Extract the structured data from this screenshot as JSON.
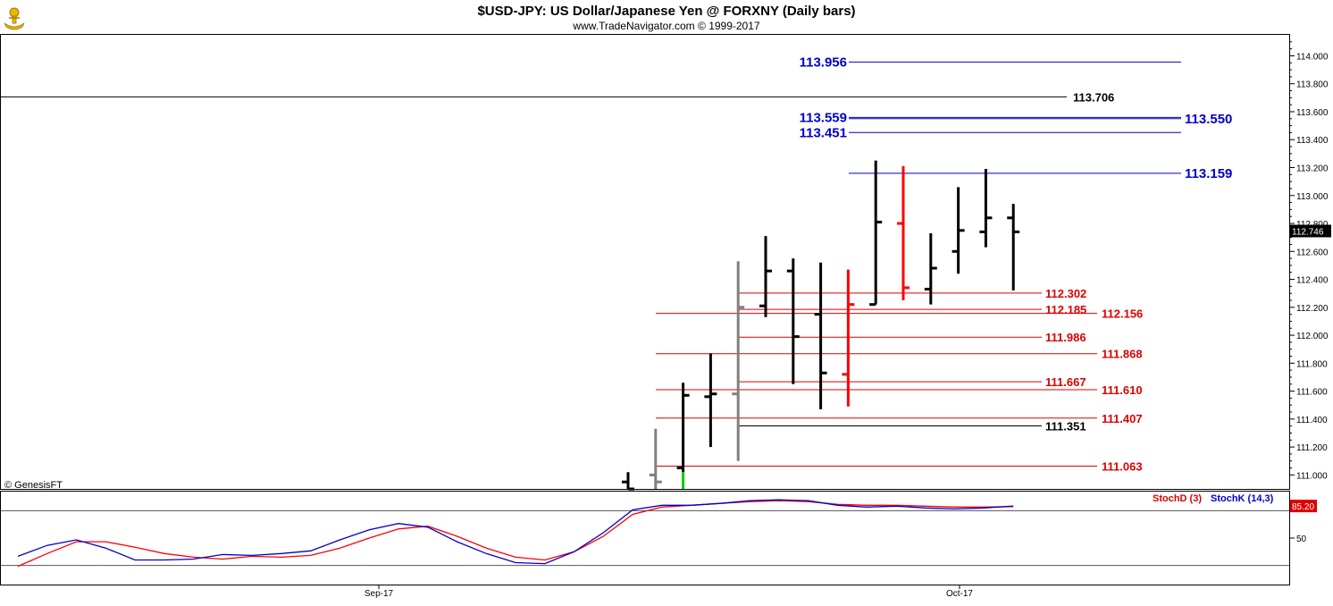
{
  "header": {
    "title": "$USD-JPY:  US Dollar/Japanese Yen @ FORXNY  (Daily bars)",
    "subtitle": "www.TradeNavigator.com © 1999-2017",
    "watermark": "© GenesisFT",
    "logo_icon": "ship-wheel-logo-icon"
  },
  "colors": {
    "background": "#ffffff",
    "up_bar": "#000000",
    "down_bar": "#ff0000",
    "neutral_bar": "#808080",
    "green_bar": "#00cc00",
    "blue_level": "#0000cc",
    "red_level": "#dd0000",
    "black_level": "#000000",
    "stoch_d": "#dd0000",
    "stoch_k": "#0000cc",
    "last_price_badge": "#000000",
    "stoch_badge": "#dd0000"
  },
  "chart_data": [
    {
      "type": "ohlc",
      "title": "$USD-JPY:  US Dollar/Japanese Yen @ FORXNY  (Daily bars)",
      "ylim": [
        110.9,
        114.15
      ],
      "grid": false,
      "x_tick_labels": [
        "Sep-17",
        "Oct-17"
      ],
      "y_tick_labels": [
        "111.000",
        "111.200",
        "111.400",
        "111.600",
        "111.800",
        "112.000",
        "112.200",
        "112.400",
        "112.600",
        "112.800",
        "113.000",
        "113.200",
        "113.400",
        "113.600",
        "113.800",
        "114.000"
      ],
      "last_price": "112.746",
      "bars": [
        {
          "high": 111.02,
          "low": 110.85,
          "open": 110.95,
          "close": 110.9,
          "color": "black"
        },
        {
          "high": 111.33,
          "low": 110.85,
          "open": 111.0,
          "close": 110.95,
          "color": "gray"
        },
        {
          "high": 111.66,
          "low": 110.85,
          "open": 111.05,
          "close": 111.57,
          "color": "black",
          "low_tail": "green"
        },
        {
          "high": 111.87,
          "low": 111.2,
          "open": 111.56,
          "close": 111.58,
          "color": "black"
        },
        {
          "high": 112.53,
          "low": 111.1,
          "open": 111.58,
          "close": 112.2,
          "color": "gray"
        },
        {
          "high": 112.71,
          "low": 112.13,
          "open": 112.21,
          "close": 112.46,
          "color": "black"
        },
        {
          "high": 112.55,
          "low": 111.65,
          "open": 112.46,
          "close": 111.99,
          "color": "black"
        },
        {
          "high": 112.52,
          "low": 111.47,
          "open": 112.15,
          "close": 111.73,
          "color": "black"
        },
        {
          "high": 112.47,
          "low": 111.49,
          "open": 111.72,
          "close": 112.22,
          "color": "red"
        },
        {
          "high": 113.25,
          "low": 112.22,
          "open": 112.22,
          "close": 112.81,
          "color": "black"
        },
        {
          "high": 113.21,
          "low": 112.25,
          "open": 112.8,
          "close": 112.34,
          "color": "red"
        },
        {
          "high": 112.73,
          "low": 112.22,
          "open": 112.33,
          "close": 112.48,
          "color": "black"
        },
        {
          "high": 113.06,
          "low": 112.44,
          "open": 112.6,
          "close": 112.75,
          "color": "black"
        },
        {
          "high": 113.19,
          "low": 112.63,
          "open": 112.74,
          "close": 112.84,
          "color": "black"
        },
        {
          "high": 112.94,
          "low": 112.32,
          "open": 112.84,
          "close": 112.74,
          "color": "black"
        }
      ],
      "levels": [
        {
          "value": 113.956,
          "label": "113.956",
          "color": "blue",
          "label_side": "left"
        },
        {
          "value": 113.706,
          "label": "113.706",
          "color": "black",
          "label_side": "right",
          "full_width": true
        },
        {
          "value": 113.559,
          "label": "113.559",
          "color": "blue",
          "label_side": "left"
        },
        {
          "value": 113.55,
          "label": "113.550",
          "color": "blue",
          "label_side": "right"
        },
        {
          "value": 113.451,
          "label": "113.451",
          "color": "blue",
          "label_side": "left"
        },
        {
          "value": 113.159,
          "label": "113.159",
          "color": "blue",
          "label_side": "right"
        },
        {
          "value": 112.302,
          "label": "112.302",
          "color": "red",
          "label_side": "right"
        },
        {
          "value": 112.185,
          "label": "112.185",
          "color": "red",
          "label_side": "right"
        },
        {
          "value": 112.156,
          "label": "112.156",
          "color": "red",
          "label_side": "right"
        },
        {
          "value": 111.986,
          "label": "111.986",
          "color": "red",
          "label_side": "right"
        },
        {
          "value": 111.868,
          "label": "111.868",
          "color": "red",
          "label_side": "right"
        },
        {
          "value": 111.667,
          "label": "111.667",
          "color": "red",
          "label_side": "right"
        },
        {
          "value": 111.61,
          "label": "111.610",
          "color": "red",
          "label_side": "right"
        },
        {
          "value": 111.407,
          "label": "111.407",
          "color": "red",
          "label_side": "right"
        },
        {
          "value": 111.351,
          "label": "111.351",
          "color": "black",
          "label_side": "right"
        },
        {
          "value": 111.063,
          "label": "111.063",
          "color": "red",
          "label_side": "right"
        }
      ]
    },
    {
      "type": "line",
      "title": "",
      "ylim": [
        0,
        100
      ],
      "y_tick_labels": [
        "50"
      ],
      "last_value": "85.20",
      "reference_lines": [
        80,
        20
      ],
      "series": [
        {
          "name": "StochD (3)",
          "color": "red",
          "values": [
            19,
            33,
            46,
            46,
            40,
            33,
            29,
            27,
            30,
            29,
            31,
            39,
            50,
            60,
            63,
            52,
            39,
            29,
            26,
            35,
            52,
            76,
            84,
            86,
            88,
            90,
            91,
            90,
            87,
            86,
            86,
            85,
            84,
            84,
            84.5
          ]
        },
        {
          "name": "StochK (14,3)",
          "color": "blue",
          "values": [
            30,
            42,
            48,
            39,
            26,
            26,
            27,
            32,
            31,
            33,
            36,
            48,
            59,
            66,
            62,
            46,
            33,
            23,
            22,
            35,
            56,
            81,
            86,
            86,
            88,
            91,
            92,
            91,
            86,
            84,
            85,
            83,
            82,
            83,
            85.2
          ]
        }
      ]
    }
  ],
  "legend": {
    "stoch_d_label": "StochD (3)",
    "stoch_k_label": "StochK (14,3)"
  }
}
